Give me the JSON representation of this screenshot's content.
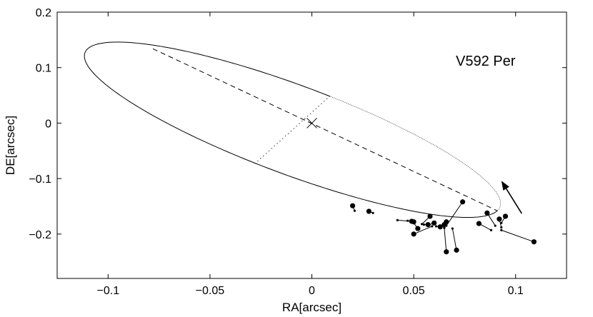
{
  "chart_data": {
    "type": "scatter",
    "title": "",
    "xlabel": "RA[arcsec]",
    "ylabel": "DE[arcsec]",
    "xlim": [
      -0.125,
      0.125
    ],
    "ylim": [
      -0.28,
      0.2
    ],
    "grid": false,
    "x_ticks": [
      {
        "value": -0.1,
        "label": "−0.1"
      },
      {
        "value": -0.05,
        "label": "−0.05"
      },
      {
        "value": 0,
        "label": "0"
      },
      {
        "value": 0.05,
        "label": "0.05"
      },
      {
        "value": 0.1,
        "label": "0.1"
      }
    ],
    "y_ticks": [
      {
        "value": 0.2,
        "label": "0.2"
      },
      {
        "value": 0.1,
        "label": "0.1"
      },
      {
        "value": 0,
        "label": "0"
      },
      {
        "value": -0.1,
        "label": "−0.1"
      },
      {
        "value": -0.2,
        "label": "−0.2"
      }
    ],
    "annotation": "V592 Per",
    "primary_position": {
      "x": 0,
      "y": 0,
      "marker": "x"
    },
    "orbit": {
      "center": {
        "x": -0.0095,
        "y": -0.012
      },
      "semi_axis_a_vector": {
        "x": 0.1005,
        "y": -0.146
      },
      "semi_axis_b_vector": {
        "x": 0.0182,
        "y": 0.0605
      },
      "solid_from_deg": 90,
      "solid_to_deg": 360
    },
    "line_of_apsides": {
      "x1": -0.078,
      "y1": 0.134,
      "x2": 0.091,
      "y2": -0.158
    },
    "line_of_nodes": {
      "x1": -0.028,
      "y1": -0.073,
      "x2": 0.009,
      "y2": 0.049
    },
    "direction_arrow": {
      "x1": 0.103,
      "y1": -0.163,
      "x2": 0.093,
      "y2": -0.104
    },
    "observations": [
      {
        "x": 0.02,
        "y": -0.149,
        "fx": 0.021,
        "fy": -0.158
      },
      {
        "x": 0.028,
        "y": -0.159,
        "fx": 0.03,
        "fy": -0.162
      },
      {
        "x": 0.049,
        "y": -0.177,
        "fx": 0.042,
        "fy": -0.175
      },
      {
        "x": 0.05,
        "y": -0.178,
        "fx": 0.047,
        "fy": -0.176
      },
      {
        "x": 0.052,
        "y": -0.19,
        "fx": 0.05,
        "fy": -0.18
      },
      {
        "x": 0.058,
        "y": -0.168,
        "fx": 0.054,
        "fy": -0.182
      },
      {
        "x": 0.057,
        "y": -0.183,
        "fx": 0.055,
        "fy": -0.183
      },
      {
        "x": 0.06,
        "y": -0.18,
        "fx": 0.057,
        "fy": -0.184
      },
      {
        "x": 0.05,
        "y": -0.2,
        "fx": 0.059,
        "fy": -0.186
      },
      {
        "x": 0.063,
        "y": -0.187,
        "fx": 0.061,
        "fy": -0.186
      },
      {
        "x": 0.066,
        "y": -0.178,
        "fx": 0.063,
        "fy": -0.187
      },
      {
        "x": 0.065,
        "y": -0.183,
        "fx": 0.065,
        "fy": -0.188
      },
      {
        "x": 0.066,
        "y": -0.232,
        "fx": 0.065,
        "fy": -0.189
      },
      {
        "x": 0.071,
        "y": -0.229,
        "fx": 0.069,
        "fy": -0.19
      },
      {
        "x": 0.074,
        "y": -0.142,
        "fx": 0.066,
        "fy": -0.185
      },
      {
        "x": 0.082,
        "y": -0.181,
        "fx": 0.088,
        "fy": -0.193
      },
      {
        "x": 0.086,
        "y": -0.162,
        "fx": 0.09,
        "fy": -0.185
      },
      {
        "x": 0.092,
        "y": -0.173,
        "fx": 0.093,
        "fy": -0.188
      },
      {
        "x": 0.095,
        "y": -0.168,
        "fx": 0.093,
        "fy": -0.18
      },
      {
        "x": 0.109,
        "y": -0.214,
        "fx": 0.093,
        "fy": -0.193
      }
    ]
  }
}
